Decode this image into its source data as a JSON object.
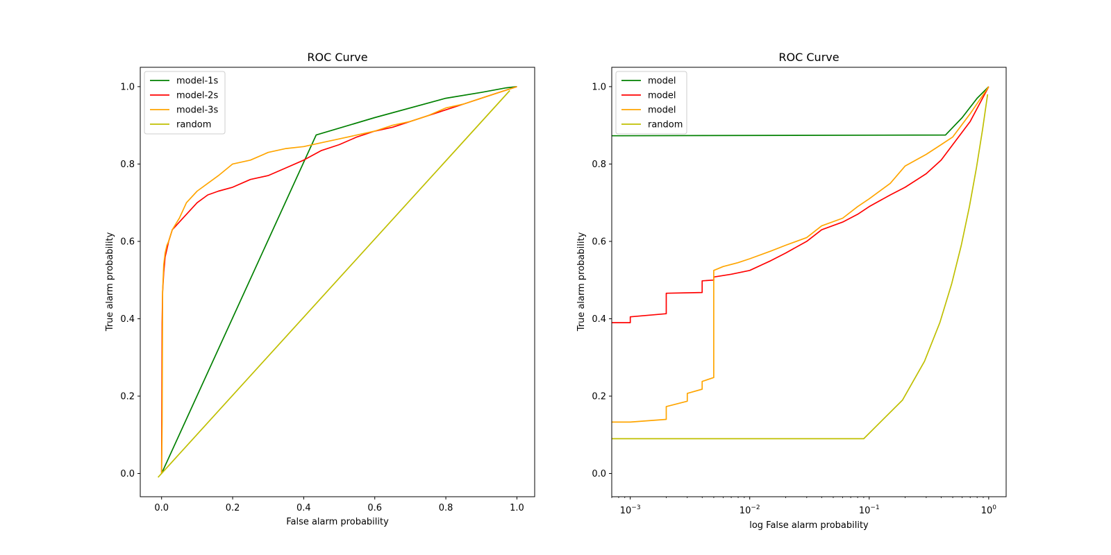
{
  "chart_data": [
    {
      "type": "line",
      "title": "ROC Curve",
      "xlabel": "False alarm probability",
      "ylabel": "True alarm probability",
      "xscale": "linear",
      "xlim": [
        -0.06,
        1.05
      ],
      "ylim": [
        -0.06,
        1.05
      ],
      "xticks": [
        0.0,
        0.2,
        0.4,
        0.6,
        0.8,
        1.0
      ],
      "xtick_labels": [
        "0.0",
        "0.2",
        "0.4",
        "0.6",
        "0.8",
        "1.0"
      ],
      "yticks": [
        0.0,
        0.2,
        0.4,
        0.6,
        0.8,
        1.0
      ],
      "ytick_labels": [
        "0.0",
        "0.2",
        "0.4",
        "0.6",
        "0.8",
        "1.0"
      ],
      "legend_position": "upper-left",
      "series": [
        {
          "name": "model-1s",
          "color": "#008000",
          "x": [
            0,
            0.435,
            0.6,
            0.8,
            0.9,
            0.97,
            1.0
          ],
          "y": [
            0,
            0.875,
            0.92,
            0.97,
            0.985,
            0.997,
            1.0
          ]
        },
        {
          "name": "model-2s",
          "color": "#ff0000",
          "x": [
            0,
            0.0015,
            0.003,
            0.006,
            0.01,
            0.015,
            0.02,
            0.03,
            0.05,
            0.07,
            0.1,
            0.13,
            0.16,
            0.2,
            0.25,
            0.3,
            0.35,
            0.4,
            0.45,
            0.5,
            0.55,
            0.6,
            0.65,
            0.7,
            0.75,
            0.8,
            0.85,
            0.9,
            0.95,
            1.0
          ],
          "y": [
            0,
            0.39,
            0.47,
            0.52,
            0.56,
            0.58,
            0.6,
            0.63,
            0.65,
            0.67,
            0.7,
            0.72,
            0.73,
            0.74,
            0.76,
            0.77,
            0.79,
            0.81,
            0.835,
            0.85,
            0.87,
            0.885,
            0.895,
            0.91,
            0.925,
            0.94,
            0.955,
            0.97,
            0.985,
            1.0
          ]
        },
        {
          "name": "model-3s",
          "color": "#ffa500",
          "x": [
            0,
            0.0015,
            0.003,
            0.006,
            0.01,
            0.015,
            0.02,
            0.03,
            0.05,
            0.07,
            0.1,
            0.13,
            0.16,
            0.2,
            0.25,
            0.3,
            0.35,
            0.4,
            0.45,
            0.5,
            0.55,
            0.6,
            0.65,
            0.7,
            0.75,
            0.8,
            0.85,
            0.9,
            0.95,
            1.0
          ],
          "y": [
            0,
            0.13,
            0.47,
            0.54,
            0.57,
            0.59,
            0.6,
            0.63,
            0.66,
            0.7,
            0.73,
            0.75,
            0.77,
            0.8,
            0.81,
            0.83,
            0.84,
            0.845,
            0.855,
            0.865,
            0.875,
            0.885,
            0.9,
            0.91,
            0.925,
            0.945,
            0.955,
            0.97,
            0.985,
            1.0
          ]
        },
        {
          "name": "random",
          "color": "#bfbf00",
          "x": [
            -0.01,
            0.98
          ],
          "y": [
            -0.01,
            0.99
          ]
        }
      ]
    },
    {
      "type": "line",
      "title": "ROC Curve",
      "xlabel": "log False alarm probability",
      "ylabel": "True alarm probability",
      "xscale": "log",
      "xlim": [
        0.0007,
        1.4
      ],
      "ylim": [
        -0.06,
        1.05
      ],
      "xticks": [
        0.001,
        0.01,
        0.1,
        1
      ],
      "xtick_labels": [
        {
          "base": "10",
          "exp": "−3"
        },
        {
          "base": "10",
          "exp": "−2"
        },
        {
          "base": "10",
          "exp": "−1"
        },
        {
          "base": "10",
          "exp": "0"
        }
      ],
      "yticks": [
        0.0,
        0.2,
        0.4,
        0.6,
        0.8,
        1.0
      ],
      "ytick_labels": [
        "0.0",
        "0.2",
        "0.4",
        "0.6",
        "0.8",
        "1.0"
      ],
      "legend_position": "upper-left",
      "series": [
        {
          "name": "model",
          "color": "#008000",
          "x": [
            0.0007,
            0.435,
            0.6,
            0.8,
            1.0
          ],
          "y": [
            0.873,
            0.875,
            0.92,
            0.97,
            1.0
          ]
        },
        {
          "name": "model",
          "color": "#ff0000",
          "x": [
            0.0007,
            0.001,
            0.001,
            0.002,
            0.002,
            0.004,
            0.004,
            0.005,
            0.005,
            0.007,
            0.01,
            0.015,
            0.02,
            0.03,
            0.04,
            0.06,
            0.08,
            0.1,
            0.15,
            0.2,
            0.3,
            0.4,
            0.5,
            0.7,
            1.0
          ],
          "y": [
            0.39,
            0.39,
            0.405,
            0.413,
            0.466,
            0.468,
            0.498,
            0.5,
            0.508,
            0.515,
            0.525,
            0.55,
            0.57,
            0.6,
            0.63,
            0.65,
            0.67,
            0.69,
            0.72,
            0.74,
            0.775,
            0.81,
            0.85,
            0.91,
            1.0
          ]
        },
        {
          "name": "model",
          "color": "#ffa500",
          "x": [
            0.0007,
            0.001,
            0.002,
            0.002,
            0.003,
            0.003,
            0.004,
            0.004,
            0.005,
            0.005,
            0.006,
            0.008,
            0.01,
            0.015,
            0.02,
            0.03,
            0.04,
            0.06,
            0.08,
            0.1,
            0.15,
            0.2,
            0.3,
            0.4,
            0.5,
            0.7,
            1.0
          ],
          "y": [
            0.133,
            0.133,
            0.14,
            0.173,
            0.187,
            0.207,
            0.218,
            0.238,
            0.248,
            0.525,
            0.535,
            0.545,
            0.555,
            0.575,
            0.59,
            0.61,
            0.64,
            0.66,
            0.69,
            0.71,
            0.75,
            0.795,
            0.825,
            0.85,
            0.87,
            0.93,
            1.0
          ]
        },
        {
          "name": "random",
          "color": "#bfbf00",
          "x": [
            0.0007,
            0.09,
            0.19,
            0.29,
            0.39,
            0.49,
            0.59,
            0.69,
            0.79,
            0.89,
            0.98
          ],
          "y": [
            0.09,
            0.09,
            0.19,
            0.29,
            0.39,
            0.49,
            0.59,
            0.69,
            0.79,
            0.89,
            0.98
          ]
        }
      ]
    }
  ]
}
